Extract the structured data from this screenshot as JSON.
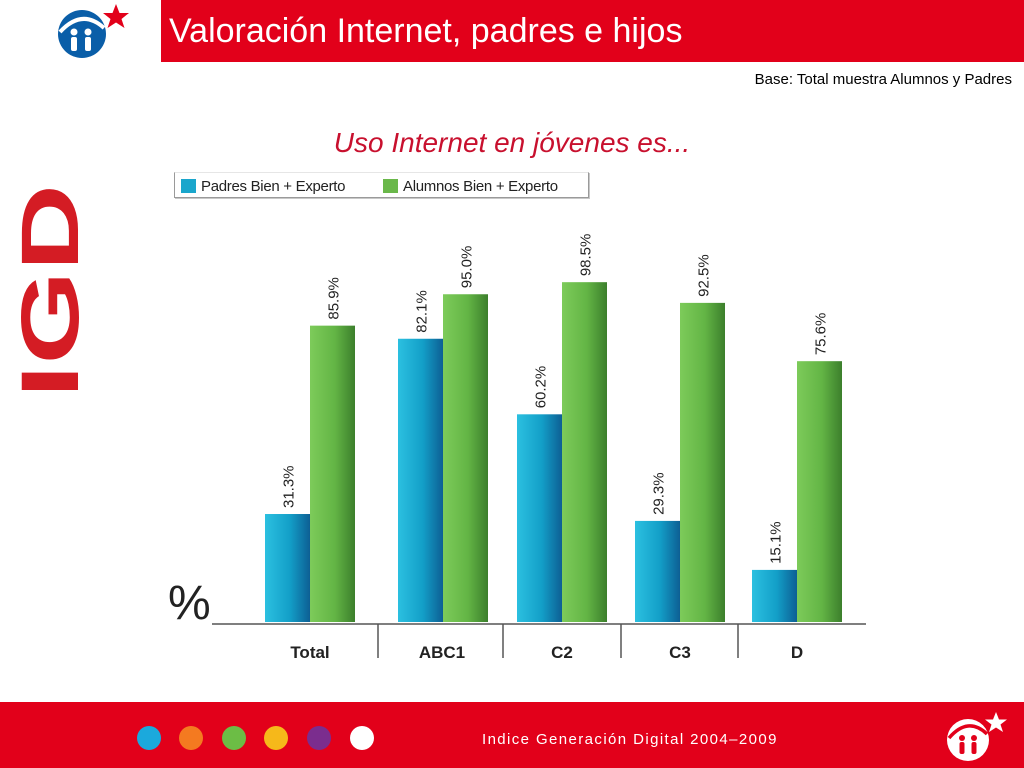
{
  "header": {
    "title": "Valoración Internet, padres e hijos",
    "base_note": "Base: Total muestra Alumnos y Padres"
  },
  "side_logo_text": "IGD",
  "chart_data": {
    "type": "bar",
    "title": "Uso Internet en jóvenes es...",
    "ylabel": "%",
    "xlabel": "",
    "categories": [
      "Total",
      "ABC1",
      "C2",
      "C3",
      "D"
    ],
    "series": [
      {
        "name": "Padres Bien + Experto",
        "values": [
          31.3,
          82.1,
          60.2,
          29.3,
          15.1
        ],
        "labels": [
          "31.3%",
          "82.1%",
          "60.2%",
          "29.3%",
          "15.1%"
        ],
        "color": "#1aa6cc"
      },
      {
        "name": "Alumnos Bien + Experto",
        "values": [
          85.9,
          95.0,
          98.5,
          92.5,
          75.6
        ],
        "labels": [
          "85.9%",
          "95.0%",
          "98.5%",
          "92.5%",
          "75.6%"
        ],
        "color": "#6ab84a"
      }
    ],
    "ylim": [
      0,
      100
    ],
    "grid": false,
    "legend": "top-left"
  },
  "footer": {
    "text": "Indice Generación Digital 2004–2009",
    "dot_colors": [
      "#1ba9dc",
      "#f47a20",
      "#6cbd45",
      "#f6b81a",
      "#7b2d8e",
      "#ffffff"
    ]
  },
  "colors": {
    "brand_red": "#e2001a",
    "subtitle_red": "#c8102e"
  }
}
